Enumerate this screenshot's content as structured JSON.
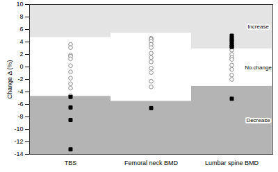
{
  "chart_data": {
    "type": "scatter",
    "y_label": "Change Δ (%)",
    "categories": [
      "TBS",
      "Femoral neck BMD",
      "Lumbar spine BMD"
    ],
    "ylim": [
      -14,
      10
    ],
    "yticks": [
      -14,
      -12,
      -10,
      -8,
      -6,
      -4,
      -2,
      0,
      2,
      4,
      6,
      8,
      10
    ],
    "thresholds": {
      "upper": [
        4.7,
        5.4,
        2.9
      ],
      "lower": [
        -4.7,
        -5.5,
        -3.1
      ]
    },
    "annotations": [
      "Increase",
      "No change",
      "Decrease"
    ],
    "series": [
      {
        "marker": "circle",
        "color": "#ffffff",
        "values": [
          [
            3.6,
            3.1,
            1.9,
            1.7,
            1.3,
            0.2,
            -0.8,
            -1.8,
            -2.7,
            -3.4,
            -4.6
          ],
          [
            4.6,
            4.4,
            4.1,
            3.6,
            3.1,
            2.2,
            1.5,
            0.8,
            -0.2,
            -0.9,
            -2.3,
            -3.2
          ],
          [
            2.7,
            2.0,
            1.5,
            1.2,
            0.3,
            -0.4,
            -1.3,
            -2.0
          ]
        ]
      },
      {
        "marker": "square",
        "color": "#000000",
        "values": [
          [
            -4.8,
            -6.5,
            -8.5,
            -13.2
          ],
          [
            -6.6
          ],
          [
            5.0,
            4.6,
            4.3,
            4.0,
            3.6,
            3.3,
            3.2,
            -5.1
          ]
        ]
      }
    ]
  }
}
